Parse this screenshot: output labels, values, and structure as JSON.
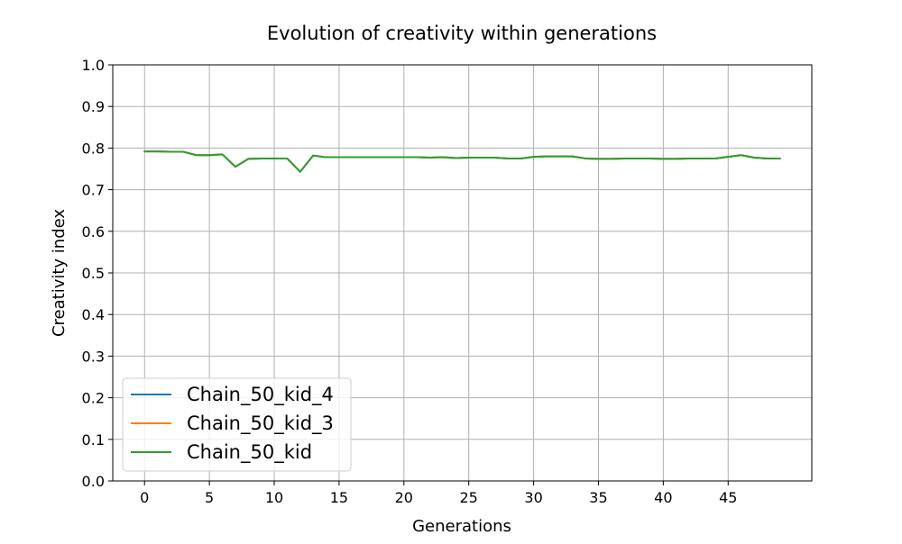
{
  "chart_data": {
    "type": "line",
    "title": "Evolution of creativity within generations",
    "xlabel": "Generations",
    "ylabel": "Creativity index",
    "xlim": [
      -2.45,
      51.45
    ],
    "ylim": [
      0.0,
      1.0
    ],
    "xticks": [
      0,
      5,
      10,
      15,
      20,
      25,
      30,
      35,
      40,
      45
    ],
    "yticks": [
      0.0,
      0.1,
      0.2,
      0.3,
      0.4,
      0.5,
      0.6,
      0.7,
      0.8,
      0.9,
      1.0
    ],
    "x_tick_labels": [
      "0",
      "5",
      "10",
      "15",
      "20",
      "25",
      "30",
      "35",
      "40",
      "45"
    ],
    "y_tick_labels": [
      "0.0",
      "0.1",
      "0.2",
      "0.3",
      "0.4",
      "0.5",
      "0.6",
      "0.7",
      "0.8",
      "0.9",
      "1.0"
    ],
    "grid": true,
    "legend_position": "lower-left",
    "x": [
      0,
      1,
      2,
      3,
      4,
      5,
      6,
      7,
      8,
      9,
      10,
      11,
      12,
      13,
      14,
      15,
      16,
      17,
      18,
      19,
      20,
      21,
      22,
      23,
      24,
      25,
      26,
      27,
      28,
      29,
      30,
      31,
      32,
      33,
      34,
      35,
      36,
      37,
      38,
      39,
      40,
      41,
      42,
      43,
      44,
      45,
      46,
      47,
      48,
      49
    ],
    "series": [
      {
        "name": "Chain_50_kid_4",
        "color": "#1f77b4",
        "values": [
          0.792,
          0.792,
          0.791,
          0.791,
          0.783,
          0.783,
          0.785,
          0.755,
          0.774,
          0.775,
          0.775,
          0.775,
          0.743,
          0.782,
          0.778,
          0.778,
          0.778,
          0.778,
          0.778,
          0.778,
          0.778,
          0.778,
          0.777,
          0.778,
          0.776,
          0.777,
          0.777,
          0.777,
          0.775,
          0.775,
          0.779,
          0.78,
          0.78,
          0.78,
          0.775,
          0.774,
          0.774,
          0.775,
          0.775,
          0.775,
          0.774,
          0.774,
          0.775,
          0.775,
          0.775,
          0.779,
          0.783,
          0.777,
          0.775,
          0.775
        ]
      },
      {
        "name": "Chain_50_kid_3",
        "color": "#ff7f0e",
        "values": [
          0.792,
          0.792,
          0.791,
          0.791,
          0.783,
          0.783,
          0.785,
          0.755,
          0.774,
          0.775,
          0.775,
          0.775,
          0.743,
          0.782,
          0.778,
          0.778,
          0.778,
          0.778,
          0.778,
          0.778,
          0.778,
          0.778,
          0.777,
          0.778,
          0.776,
          0.777,
          0.777,
          0.777,
          0.775,
          0.775,
          0.779,
          0.78,
          0.78,
          0.78,
          0.775,
          0.774,
          0.774,
          0.775,
          0.775,
          0.775,
          0.774,
          0.774,
          0.775,
          0.775,
          0.775,
          0.779,
          0.783,
          0.777,
          0.775,
          0.775
        ]
      },
      {
        "name": "Chain_50_kid",
        "color": "#2ca02c",
        "values": [
          0.792,
          0.792,
          0.791,
          0.791,
          0.783,
          0.783,
          0.785,
          0.755,
          0.774,
          0.775,
          0.775,
          0.775,
          0.743,
          0.782,
          0.778,
          0.778,
          0.778,
          0.778,
          0.778,
          0.778,
          0.778,
          0.778,
          0.777,
          0.778,
          0.776,
          0.777,
          0.777,
          0.777,
          0.775,
          0.775,
          0.779,
          0.78,
          0.78,
          0.78,
          0.775,
          0.774,
          0.774,
          0.775,
          0.775,
          0.775,
          0.774,
          0.774,
          0.775,
          0.775,
          0.775,
          0.779,
          0.783,
          0.777,
          0.775,
          0.775
        ]
      }
    ]
  }
}
